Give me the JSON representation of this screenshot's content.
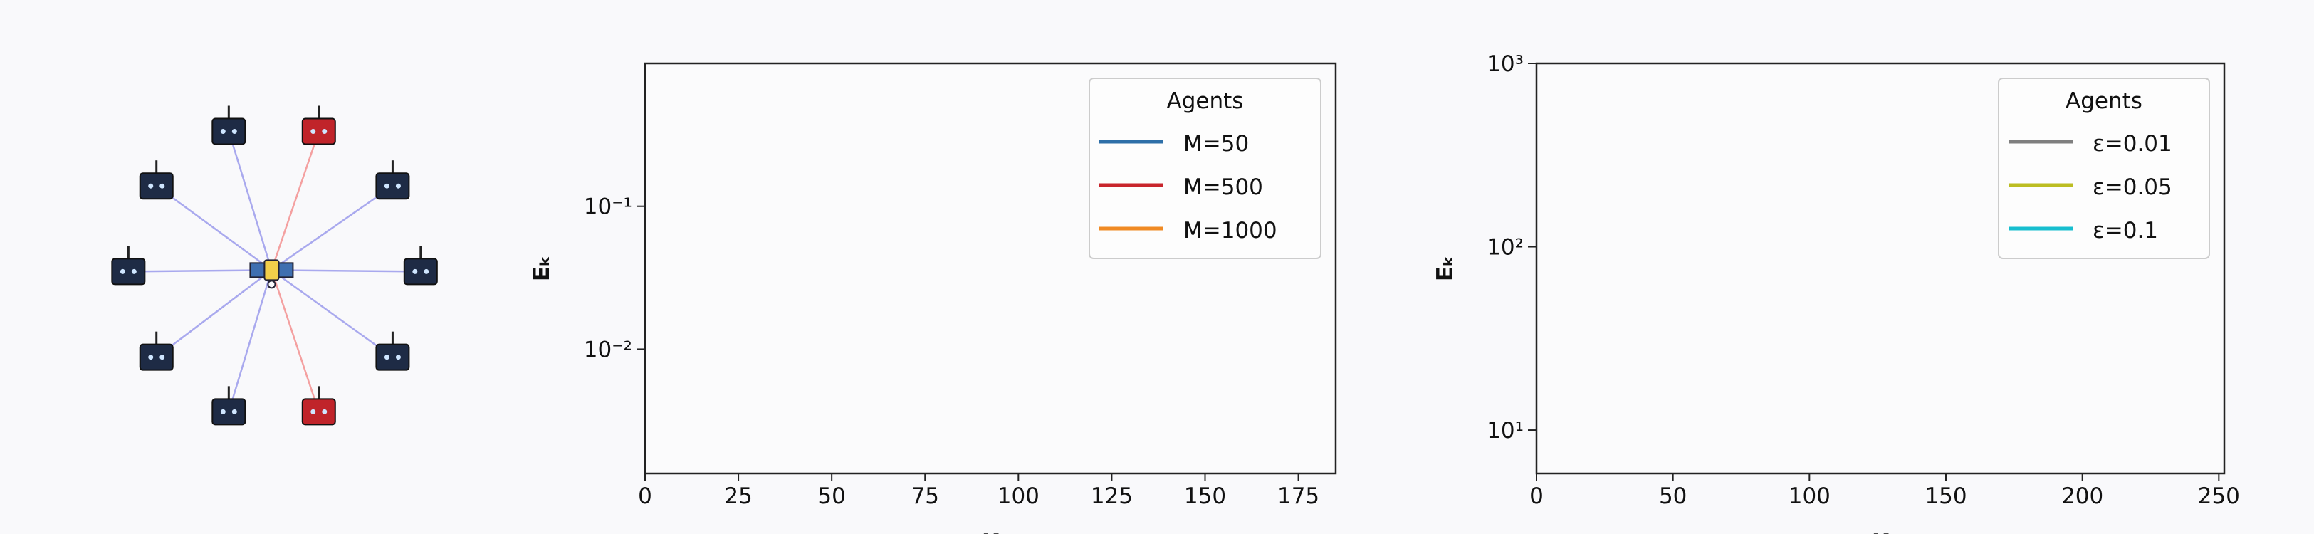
{
  "chart_data": [
    {
      "type": "line",
      "ylabel": "Eₖ",
      "xlabel": "K",
      "legend_title": "Agents",
      "legend": "upper right",
      "log_y": true,
      "xlim": [
        0,
        185
      ],
      "ylim": [
        0.00135,
        1
      ],
      "xticks": [
        0,
        25,
        50,
        75,
        100,
        125,
        150,
        175
      ],
      "yticks": [
        {
          "value": 0.01,
          "label": "10⁻²"
        },
        {
          "value": 0.1,
          "label": "10⁻¹"
        }
      ],
      "series": [
        {
          "name": "M=50",
          "color": "#2e6fa8",
          "values": []
        },
        {
          "name": "M=500",
          "color": "#c8252c",
          "values": []
        },
        {
          "name": "M=1000",
          "color": "#f08a24",
          "values": []
        }
      ]
    },
    {
      "type": "line",
      "ylabel": "Eₖ",
      "xlabel": "K",
      "legend_title": "Agents",
      "legend": "upper right",
      "log_y": true,
      "xlim": [
        0,
        252
      ],
      "ylim": [
        5.8,
        1000
      ],
      "xticks": [
        0,
        50,
        100,
        150,
        200,
        250
      ],
      "yticks": [
        {
          "value": 10,
          "label": "10¹"
        },
        {
          "value": 100,
          "label": "10²"
        },
        {
          "value": 1000,
          "label": "10³"
        }
      ],
      "series": [
        {
          "name": "ε=0.01",
          "color": "#7f7f7f",
          "values": []
        },
        {
          "name": "ε=0.05",
          "color": "#bcbd22",
          "values": []
        },
        {
          "name": "ε=0.1",
          "color": "#17becf",
          "values": []
        }
      ]
    }
  ]
}
